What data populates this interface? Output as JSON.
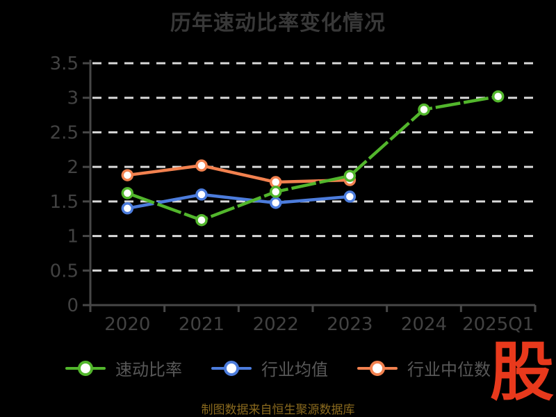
{
  "title": "历年速动比率变化情况",
  "source_note": "制图数据来自恒生聚源数据库",
  "logo_text": "股",
  "colors": {
    "background": "#000000",
    "title": "#383838",
    "axis": "#474747",
    "tick_label": "#424242",
    "gridline": "#d9d9d9",
    "legend_text": "#585858",
    "source_text": "#8a6a1e",
    "logo_red": "#e8391c",
    "marker_fill": "#ffffff",
    "series_green": "#52b62c",
    "series_blue": "#4c7cdc",
    "series_orange": "#f2814f"
  },
  "chart_data": {
    "type": "line",
    "title": "历年速动比率变化情况",
    "categories": [
      "2020",
      "2021",
      "2022",
      "2023",
      "2024",
      "2025Q1"
    ],
    "series": [
      {
        "name": "速动比率",
        "color": "#52b62c",
        "style": "sketch-dashed",
        "values": [
          1.62,
          1.23,
          1.64,
          1.87,
          2.83,
          3.02
        ]
      },
      {
        "name": "行业均值",
        "color": "#4c7cdc",
        "style": "solid",
        "values": [
          1.4,
          1.6,
          1.48,
          1.57
        ]
      },
      {
        "name": "行业中位数",
        "color": "#f2814f",
        "style": "solid",
        "values": [
          1.88,
          2.02,
          1.78,
          1.81
        ]
      }
    ],
    "xlabel": "",
    "ylabel": "",
    "ylim": [
      0,
      3.5
    ],
    "yticks": [
      0,
      0.5,
      1,
      1.5,
      2,
      2.5,
      3,
      3.5
    ],
    "ytick_labels": [
      "0",
      "0.5",
      "1",
      "1.5",
      "2",
      "2.5",
      "3",
      "3.5"
    ],
    "grid": "horizontal-dashed-white",
    "legend_position": "bottom",
    "marker": "white-filled-circle-colored-ring",
    "background": "black"
  }
}
